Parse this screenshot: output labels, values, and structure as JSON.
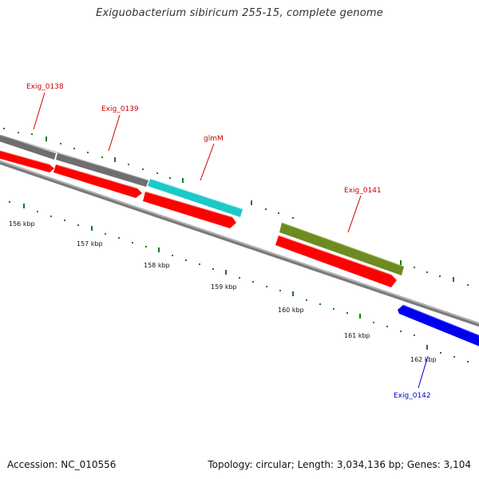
{
  "title": "Exiguobacterium sibiricum 255-15, complete genome",
  "footer": {
    "accession": "Accession: NC_010556",
    "summary": "Topology: circular; Length: 3,034,136 bp; Genes: 3,104"
  },
  "colors": {
    "backbone": "#7a7a7a",
    "tick": "#1a7a1a",
    "cds": "#ff0000",
    "gene_gray": "#6e6e6e",
    "gene_cyan": "#1ec8c8",
    "gene_olive": "#6e8a22",
    "gene_blue": "#0000ee",
    "label_forward": "#cc0000",
    "label_reverse": "#0000cc"
  },
  "scale_labels": [
    "156 kbp",
    "157 kbp",
    "158 kbp",
    "159 kbp",
    "160 kbp",
    "161 kbp",
    "162 kbp"
  ],
  "gene_labels": [
    {
      "name": "Exig_0138",
      "strand": "forward"
    },
    {
      "name": "Exig_0139",
      "strand": "forward"
    },
    {
      "name": "glmM",
      "strand": "forward"
    },
    {
      "name": "Exig_0141",
      "strand": "forward"
    },
    {
      "name": "Exig_0142",
      "strand": "reverse"
    }
  ]
}
